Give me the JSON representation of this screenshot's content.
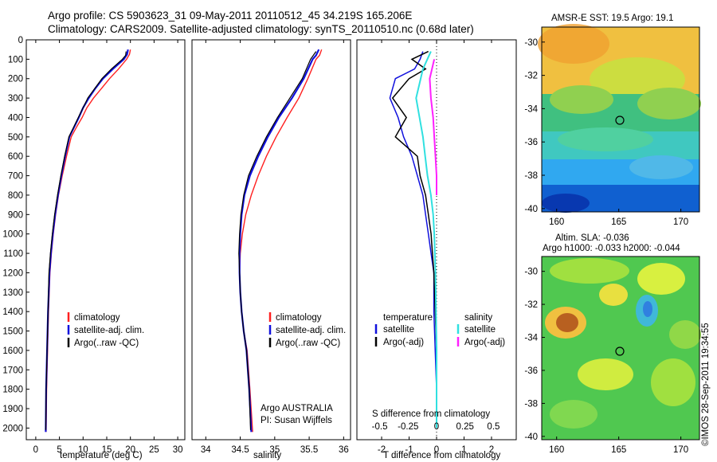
{
  "header": {
    "line1": "Argo profile: CS 5903623_31 09-May-2011 20110512_45 34.219S 165.206E",
    "line2": "Climatology: CARS2009. Satellite-adjusted climatology: synTS_20110510.nc (0.68d later)"
  },
  "colors": {
    "climatology": "#ff2020",
    "satellite": "#1010dd",
    "argo": "#000000",
    "sal_satellite": "#30e0e0",
    "sal_argo": "#ff20ff"
  },
  "panels": {
    "temperature": {
      "xlabel": "temperature (deg C)",
      "xticks": [
        "0",
        "5",
        "10",
        "15",
        "20",
        "25",
        "30"
      ],
      "legend": [
        "climatology",
        "satellite-adj. clim.",
        "Argo(..raw -QC)"
      ]
    },
    "salinity": {
      "xlabel": "salinity",
      "xticks": [
        "34",
        "34.5",
        "35",
        "35.5",
        "36"
      ],
      "legend": [
        "climatology",
        "satellite-adj. clim.",
        "Argo(..raw -QC)"
      ],
      "note1": "Argo AUSTRALIA",
      "note2": "PI: Susan Wijffels"
    },
    "difference": {
      "xlabel": "T difference from climatology",
      "top_label": "S difference from climatology",
      "s_ticks": [
        "-0.5",
        "-0.25",
        "0",
        "0.25",
        "0.5"
      ],
      "t_ticks": [
        "-2",
        "-1",
        "0",
        "1",
        "2"
      ],
      "legend_t_title": "temperature",
      "legend_s_title": "salinity",
      "legend_t": [
        "satellite",
        "Argo(-adj)"
      ],
      "legend_s": [
        "satellite",
        "Argo(-adj)"
      ]
    },
    "y_ticks": [
      "0",
      "100",
      "200",
      "300",
      "400",
      "500",
      "600",
      "700",
      "800",
      "900",
      "1000",
      "1100",
      "1200",
      "1300",
      "1400",
      "1500",
      "1600",
      "1700",
      "1800",
      "1900",
      "2000"
    ]
  },
  "maps": {
    "sst_title": "AMSR-E SST: 19.5  Argo: 19.1",
    "sla_title1": "Altim. SLA: -0.036",
    "sla_title2": "Argo h1000: -0.033 h2000: -0.044",
    "lat_ticks": [
      "-30",
      "-32",
      "-34",
      "-36",
      "-38",
      "-40"
    ],
    "lon_ticks": [
      "160",
      "165",
      "170"
    ]
  },
  "credit": "©IMOS 28-Sep-2011 19:34:55",
  "chart_data": [
    {
      "type": "line",
      "xlabel": "temperature (deg C)",
      "ylabel": "",
      "xlim": [
        -2,
        31.5
      ],
      "ylim": [
        2060,
        0
      ],
      "series": [
        {
          "name": "climatology",
          "x": [
            20.0,
            19.8,
            19.2,
            17.5,
            15.6,
            13.9,
            12.2,
            10.8,
            9.8,
            8.6,
            7.5,
            6.5,
            5.6,
            4.8,
            4.2,
            3.7,
            3.3,
            3.0,
            2.7,
            2.5,
            2.3,
            2.2
          ],
          "y": [
            50,
            75,
            100,
            150,
            200,
            250,
            300,
            350,
            400,
            450,
            500,
            600,
            700,
            800,
            900,
            1000,
            1100,
            1200,
            1400,
            1600,
            1800,
            2020
          ]
        },
        {
          "name": "satellite-adj. clim.",
          "x": [
            19.5,
            19.3,
            18.6,
            16.3,
            14.2,
            12.6,
            11.2,
            10.0,
            9.1,
            8.1,
            7.1,
            6.2,
            5.4,
            4.7,
            4.1,
            3.6,
            3.2,
            2.9,
            2.6,
            2.4,
            2.2,
            2.1
          ],
          "y": [
            50,
            75,
            100,
            150,
            200,
            250,
            300,
            350,
            400,
            450,
            500,
            600,
            700,
            800,
            900,
            1000,
            1100,
            1200,
            1400,
            1600,
            1800,
            2020
          ]
        },
        {
          "name": "Argo(..raw -QC)",
          "x": [
            19.1,
            19.0,
            18.3,
            16.0,
            14.0,
            12.5,
            11.0,
            10.0,
            9.0,
            8.0,
            7.0,
            6.1,
            5.3,
            4.6,
            4.0,
            3.5,
            3.1,
            2.8,
            2.6,
            2.4,
            2.2,
            2.1
          ],
          "y": [
            60,
            80,
            100,
            150,
            200,
            250,
            300,
            350,
            400,
            450,
            500,
            600,
            700,
            800,
            900,
            1000,
            1100,
            1200,
            1400,
            1600,
            1800,
            2010
          ]
        }
      ]
    },
    {
      "type": "line",
      "xlabel": "salinity",
      "ylabel": "",
      "xlim": [
        33.8,
        36.1
      ],
      "ylim": [
        2060,
        0
      ],
      "series": [
        {
          "name": "climatology",
          "x": [
            35.68,
            35.65,
            35.6,
            35.48,
            35.35,
            35.18,
            35.02,
            34.88,
            34.76,
            34.66,
            34.58,
            34.53,
            34.5,
            34.49,
            34.5,
            34.52,
            34.55,
            34.6,
            34.64,
            34.68
          ],
          "y": [
            50,
            80,
            100,
            200,
            300,
            400,
            500,
            600,
            700,
            800,
            900,
            1000,
            1100,
            1200,
            1300,
            1400,
            1500,
            1600,
            1800,
            2020
          ]
        },
        {
          "name": "satellite-adj. clim.",
          "x": [
            35.64,
            35.6,
            35.55,
            35.42,
            35.25,
            35.06,
            34.9,
            34.76,
            34.64,
            34.56,
            34.52,
            34.5,
            34.49,
            34.49,
            34.5,
            34.52,
            34.55,
            34.59,
            34.63,
            34.66
          ],
          "y": [
            50,
            80,
            100,
            200,
            300,
            400,
            500,
            600,
            700,
            800,
            900,
            1000,
            1100,
            1200,
            1300,
            1400,
            1500,
            1600,
            1800,
            2020
          ]
        },
        {
          "name": "Argo(..raw -QC)",
          "x": [
            35.6,
            35.56,
            35.52,
            35.4,
            35.22,
            35.04,
            34.88,
            34.74,
            34.62,
            34.55,
            34.51,
            34.49,
            34.48,
            34.49,
            34.5,
            34.52,
            34.55,
            34.59,
            34.63,
            34.65
          ],
          "y": [
            60,
            80,
            100,
            200,
            300,
            400,
            500,
            600,
            700,
            800,
            900,
            1000,
            1100,
            1200,
            1300,
            1400,
            1500,
            1600,
            1800,
            2010
          ]
        }
      ]
    },
    {
      "type": "line",
      "xlabel": "T difference from climatology",
      "ylabel": "",
      "xlim": [
        -2.9,
        2.9
      ],
      "ylim": [
        2060,
        0
      ],
      "series": [
        {
          "name": "temperature satellite",
          "x": [
            -0.5,
            -0.6,
            -0.8,
            -1.5,
            -1.7,
            -1.4,
            -1.2,
            -0.9,
            -0.7,
            -0.5,
            -0.4,
            -0.3,
            -0.2,
            -0.1,
            -0.1,
            -0.05,
            0,
            0
          ],
          "y": [
            60,
            100,
            150,
            200,
            300,
            400,
            500,
            600,
            700,
            800,
            900,
            1000,
            1100,
            1200,
            1400,
            1600,
            1800,
            2000
          ]
        },
        {
          "name": "temperature Argo(-adj)",
          "x": [
            -0.3,
            -0.9,
            -0.4,
            -1.0,
            -1.6,
            -1.1,
            -1.5,
            -0.7,
            -0.6,
            -0.4,
            -0.3,
            -0.2,
            -0.15,
            -0.1,
            -0.05,
            0,
            0,
            0
          ],
          "y": [
            60,
            100,
            150,
            200,
            300,
            400,
            500,
            600,
            700,
            800,
            900,
            1000,
            1100,
            1200,
            1400,
            1600,
            1800,
            2000
          ]
        },
        {
          "name": "salinity satellite",
          "x": [
            -0.05,
            -0.12,
            -0.18,
            -0.15,
            -0.12,
            -0.1,
            -0.08,
            -0.05,
            -0.03,
            -0.02,
            -0.01,
            0,
            0
          ],
          "y": [
            60,
            150,
            300,
            400,
            500,
            600,
            700,
            800,
            900,
            1000,
            1200,
            1600,
            2000
          ]
        },
        {
          "name": "salinity Argo(-adj)",
          "x": [
            -0.02,
            -0.06,
            -0.05,
            -0.03,
            -0.02,
            -0.01,
            0,
            0
          ],
          "y": [
            100,
            200,
            300,
            400,
            500,
            600,
            700,
            800
          ]
        }
      ]
    }
  ]
}
